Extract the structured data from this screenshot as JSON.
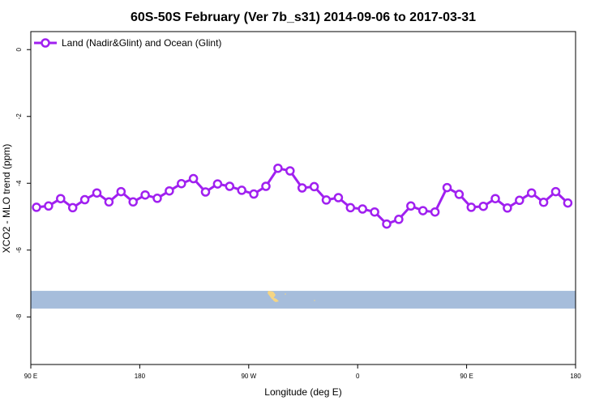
{
  "chart_data": {
    "type": "line",
    "title": "60S-50S February (Ver 7b_s31)   2014-09-06 to 2017-03-31",
    "xlabel": "Longitude (deg E)",
    "ylabel": "XCO2 - MLO trend (ppm)",
    "xlim": [
      90,
      450
    ],
    "ylim": [
      -9.5,
      0.5
    ],
    "x_ticks": [
      {
        "value": 90,
        "label": "90 E"
      },
      {
        "value": 162,
        "label": "180"
      },
      {
        "value": 234,
        "label": "90 W"
      },
      {
        "value": 306,
        "label": "0"
      },
      {
        "value": 378,
        "label": "90 E"
      },
      {
        "value": 450,
        "label": "180"
      }
    ],
    "y_ticks": [
      {
        "value": 0,
        "label": "0"
      },
      {
        "value": -2,
        "label": "-2"
      },
      {
        "value": -4,
        "label": "-4"
      },
      {
        "value": -6,
        "label": "-6"
      },
      {
        "value": -8,
        "label": "-8"
      }
    ],
    "grid": false,
    "legend_position": "top-left",
    "series": [
      {
        "name": "Land (Nadir&Glint) and Ocean (Glint)",
        "color": "#a020f0",
        "marker": "open-circle",
        "x": [
          94,
          102,
          110,
          118,
          126,
          134,
          142,
          150,
          158,
          166,
          174,
          182,
          190,
          198,
          206,
          214,
          222,
          230,
          238,
          246,
          254,
          262,
          270,
          278,
          286,
          294,
          302,
          310,
          318,
          326,
          334,
          342,
          350,
          358,
          366,
          374,
          382,
          390,
          398,
          406,
          414,
          422,
          430,
          438,
          446
        ],
        "y": [
          -4.72,
          -4.68,
          -4.46,
          -4.73,
          -4.49,
          -4.29,
          -4.56,
          -4.25,
          -4.56,
          -4.35,
          -4.45,
          -4.23,
          -4.01,
          -3.86,
          -4.26,
          -4.02,
          -4.09,
          -4.21,
          -4.32,
          -4.09,
          -3.55,
          -3.63,
          -4.14,
          -4.1,
          -4.5,
          -4.43,
          -4.73,
          -4.77,
          -4.86,
          -5.22,
          -5.08,
          -4.68,
          -4.82,
          -4.86,
          -4.13,
          -4.33,
          -4.72,
          -4.69,
          -4.46,
          -4.74,
          -4.51,
          -4.29,
          -4.57,
          -4.25,
          -4.59
        ]
      }
    ],
    "map_strip": {
      "ocean_color": "#a6bddb",
      "land_color": "#f5d583",
      "y_range": [
        -7.22,
        -7.75
      ]
    }
  }
}
